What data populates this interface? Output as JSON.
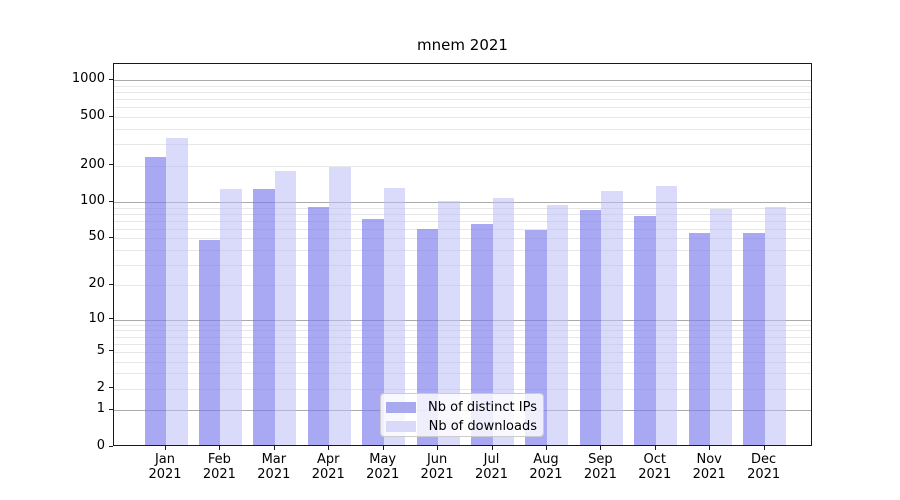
{
  "title": "mnem 2021",
  "chart_data": {
    "type": "bar",
    "title": "mnem 2021",
    "categories": [
      "Jan 2021",
      "Feb 2021",
      "Mar 2021",
      "Apr 2021",
      "May 2021",
      "Jun 2021",
      "Jul 2021",
      "Aug 2021",
      "Sep 2021",
      "Oct 2021",
      "Nov 2021",
      "Dec 2021"
    ],
    "series": [
      {
        "name": "Nb of distinct IPs",
        "color": "rgba(123,123,237,0.66)",
        "legend_color": "#a9a9f0",
        "values": [
          225,
          47,
          123,
          88,
          70,
          58,
          64,
          56,
          83,
          74,
          53,
          53
        ]
      },
      {
        "name": "Nb of downloads",
        "color": "rgba(187,187,246,0.55)",
        "legend_color": "#d9d9fa",
        "values": [
          325,
          123,
          174,
          186,
          127,
          98,
          104,
          91,
          119,
          130,
          84,
          88
        ]
      }
    ],
    "yscale": "log1p",
    "ylim": [
      0,
      1365
    ],
    "yticks": [
      0,
      1,
      2,
      5,
      10,
      20,
      50,
      100,
      200,
      500,
      1000
    ],
    "xlabel": "",
    "ylabel": "",
    "grid": true,
    "legend_position": "bottom-center",
    "colors": {
      "bar_dark": "#a8a8f0",
      "bar_light": "#dbdbf8",
      "grid_minor": "#e7e7e7",
      "grid_decade": "#ababab",
      "spine": "#1a1a1a",
      "background": "#ffffff"
    }
  }
}
